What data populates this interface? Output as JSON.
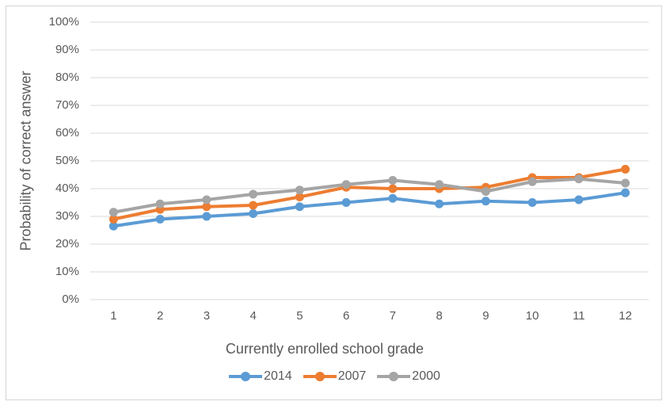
{
  "chart_data": {
    "type": "line",
    "title": "",
    "xlabel": "Currently enrolled school grade",
    "ylabel": "Probability of correct answer",
    "categories": [
      "1",
      "2",
      "3",
      "4",
      "5",
      "6",
      "7",
      "8",
      "9",
      "10",
      "11",
      "12"
    ],
    "series": [
      {
        "name": "2014",
        "color": "#5B9BD5",
        "values": [
          26.5,
          29,
          30,
          31,
          33.5,
          35,
          36.5,
          34.5,
          35.5,
          35,
          36,
          38.5
        ]
      },
      {
        "name": "2007",
        "color": "#ED7D31",
        "values": [
          29,
          32.5,
          33.5,
          34,
          37,
          40.5,
          40,
          40,
          40.5,
          44,
          44,
          47
        ]
      },
      {
        "name": "2000",
        "color": "#A5A5A5",
        "values": [
          31.5,
          34.5,
          36,
          38,
          39.5,
          41.5,
          43,
          41.5,
          39,
          42.5,
          43.5,
          42
        ]
      }
    ],
    "ylim": [
      0,
      100
    ],
    "ytick_step": 10,
    "ytick_labels": [
      "0%",
      "10%",
      "20%",
      "30%",
      "40%",
      "50%",
      "60%",
      "70%",
      "80%",
      "90%",
      "100%"
    ],
    "grid": true,
    "legend_position": "bottom",
    "marker": "circle"
  },
  "style": {
    "grid_color": "#D9D9D9",
    "text_color": "#595959",
    "border_color": "#D5D5D5",
    "background": "#FFFFFF"
  }
}
